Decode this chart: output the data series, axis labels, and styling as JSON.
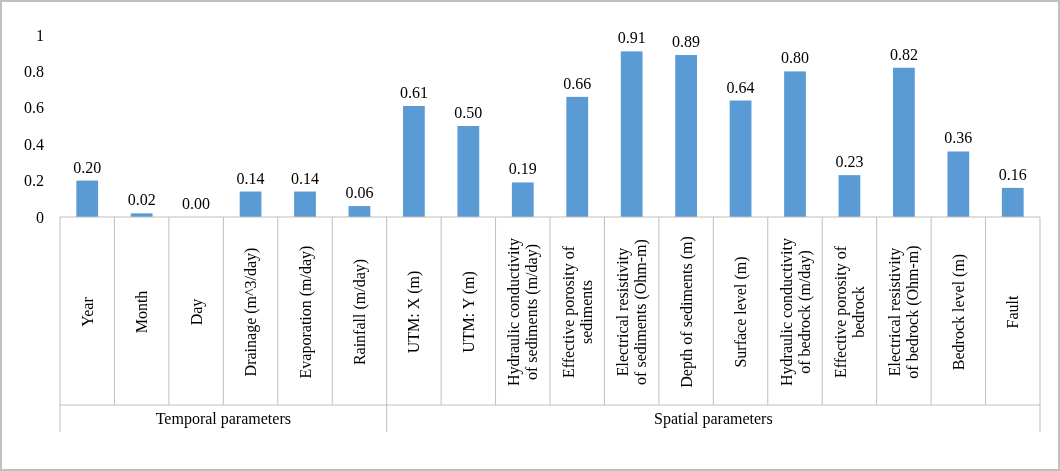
{
  "chart_data": {
    "type": "bar",
    "categories": [
      "Year",
      "Month",
      "Day",
      "Drainage (m^3/day)",
      "Evaporation (m/day)",
      "Rainfall (m/day)",
      "UTM: X (m)",
      "UTM: Y (m)",
      "Hydraulic conductivity of sediments (m/day)",
      "Effective porosity of sediments",
      "Electrical resistivity of sediments (Ohm-m)",
      "Depth of sediments (m)",
      "Surface level (m)",
      "Hydraulic conductivity of bedrock (m/day)",
      "Effective porosity of bedrock",
      "Electrical resistivity of bedrock (Ohm-m)",
      "Bedrock level (m)",
      "Fault"
    ],
    "values": [
      0.2,
      0.02,
      0,
      0.14,
      0.14,
      0.06,
      0.61,
      0.5,
      0.19,
      0.66,
      0.91,
      0.89,
      0.64,
      0.8,
      0.23,
      0.82,
      0.36,
      0.16
    ],
    "value_labels": [
      "0.20",
      "0.02",
      "0.00",
      "0.14",
      "0.14",
      "0.06",
      "0.61",
      "0.50",
      "0.19",
      "0.66",
      "0.91",
      "0.89",
      "0.64",
      "0.80",
      "0.23",
      "0.82",
      "0.36",
      "0.16"
    ],
    "color": "#5b9bd5",
    "ylim": [
      0,
      1
    ],
    "yticks": [
      0,
      0.2,
      0.4,
      0.6,
      0.8,
      1
    ],
    "grid": false,
    "annotations": [
      "Temporal parameters",
      "Spatial parameters"
    ]
  }
}
